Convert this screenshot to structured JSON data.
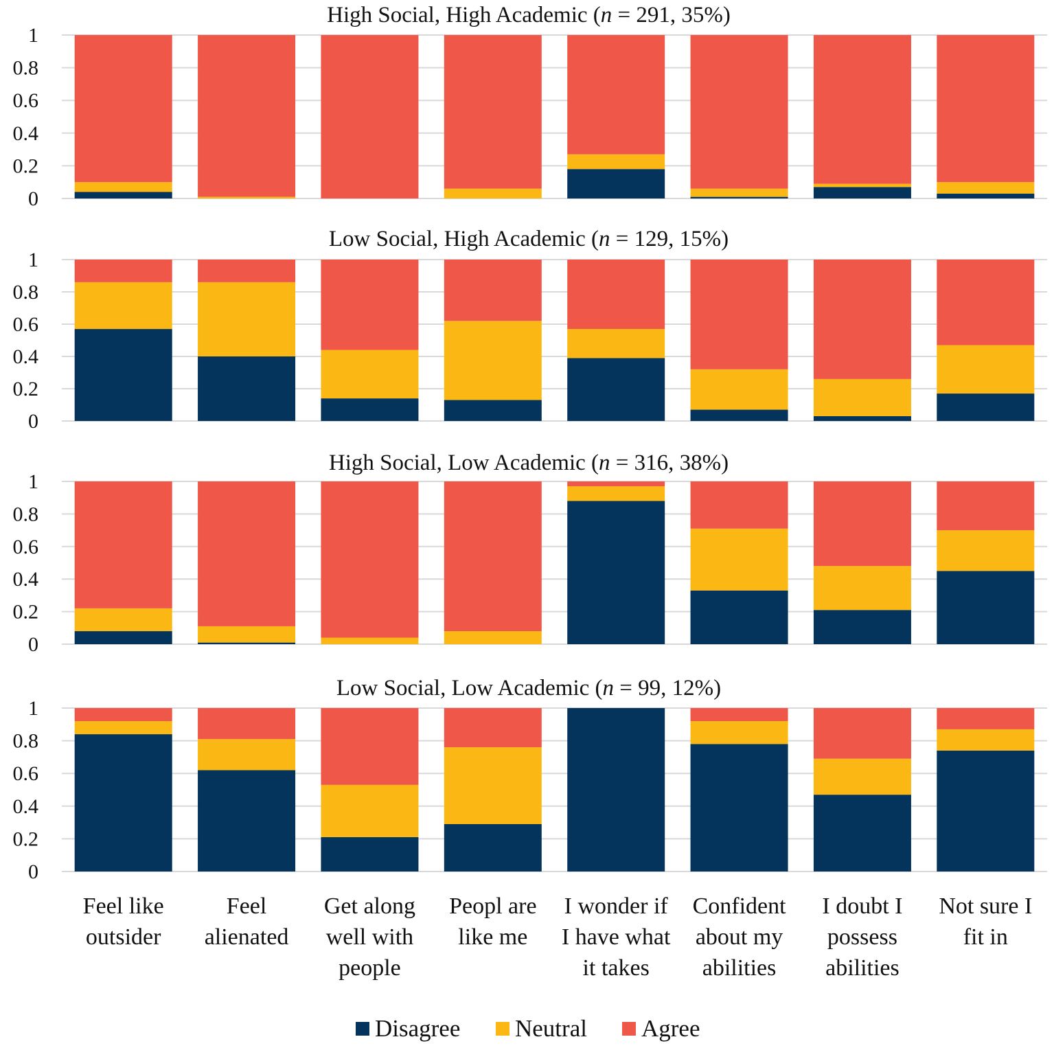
{
  "chart_data": {
    "type": "bar",
    "stacked": true,
    "categories": [
      "Feel like\noutsider",
      "Feel\nalienated",
      "Get along\nwell with\npeople",
      "Peopl are\nlike me",
      "I wonder if\nI have what\nit takes",
      "Confident\nabout my\nabilities",
      "I doubt I\npossess\nabilities",
      "Not sure I\nfit in"
    ],
    "ylim": [
      0,
      1
    ],
    "yticks": [
      "0",
      "0.2",
      "0.4",
      "0.6",
      "0.8",
      "1"
    ],
    "grid": true,
    "legend": {
      "placement": "bottom",
      "entries": [
        "Disagree",
        "Neutral",
        "Agree"
      ]
    },
    "colors": {
      "Disagree": "#04345c",
      "Neutral": "#fbb814",
      "Agree": "#ef5848",
      "grid": "#d9d9d9"
    },
    "panels": [
      {
        "title_prefix": "High Social, High Academic (",
        "title_n": "n",
        "title_suffix": " = 291, 35%)",
        "series": [
          {
            "name": "Disagree",
            "values": [
              0.04,
              0.0,
              0.0,
              0.0,
              0.18,
              0.01,
              0.07,
              0.03
            ]
          },
          {
            "name": "Neutral",
            "values": [
              0.06,
              0.01,
              0.0,
              0.06,
              0.09,
              0.05,
              0.02,
              0.07
            ]
          },
          {
            "name": "Agree",
            "values": [
              0.9,
              0.99,
              1.0,
              0.94,
              0.73,
              0.94,
              0.91,
              0.9
            ]
          }
        ]
      },
      {
        "title_prefix": "Low Social, High Academic (",
        "title_n": "n",
        "title_suffix": " = 129, 15%)",
        "series": [
          {
            "name": "Disagree",
            "values": [
              0.57,
              0.4,
              0.14,
              0.13,
              0.39,
              0.07,
              0.03,
              0.17
            ]
          },
          {
            "name": "Neutral",
            "values": [
              0.29,
              0.46,
              0.3,
              0.49,
              0.18,
              0.25,
              0.23,
              0.3
            ]
          },
          {
            "name": "Agree",
            "values": [
              0.14,
              0.14,
              0.56,
              0.38,
              0.43,
              0.68,
              0.74,
              0.53
            ]
          }
        ]
      },
      {
        "title_prefix": "High Social, Low Academic (",
        "title_n": "n",
        "title_suffix": " = 316, 38%)",
        "series": [
          {
            "name": "Disagree",
            "values": [
              0.08,
              0.01,
              0.0,
              0.0,
              0.88,
              0.33,
              0.21,
              0.45
            ]
          },
          {
            "name": "Neutral",
            "values": [
              0.14,
              0.1,
              0.04,
              0.08,
              0.09,
              0.38,
              0.27,
              0.25
            ]
          },
          {
            "name": "Agree",
            "values": [
              0.78,
              0.89,
              0.96,
              0.92,
              0.03,
              0.29,
              0.52,
              0.3
            ]
          }
        ]
      },
      {
        "title_prefix": "Low Social, Low Academic (",
        "title_n": "n",
        "title_suffix": " = 99, 12%)",
        "series": [
          {
            "name": "Disagree",
            "values": [
              0.84,
              0.62,
              0.21,
              0.29,
              1.0,
              0.78,
              0.47,
              0.74
            ]
          },
          {
            "name": "Neutral",
            "values": [
              0.08,
              0.19,
              0.32,
              0.47,
              0.0,
              0.14,
              0.22,
              0.13
            ]
          },
          {
            "name": "Agree",
            "values": [
              0.08,
              0.19,
              0.47,
              0.24,
              0.0,
              0.08,
              0.31,
              0.13
            ]
          }
        ]
      }
    ]
  }
}
